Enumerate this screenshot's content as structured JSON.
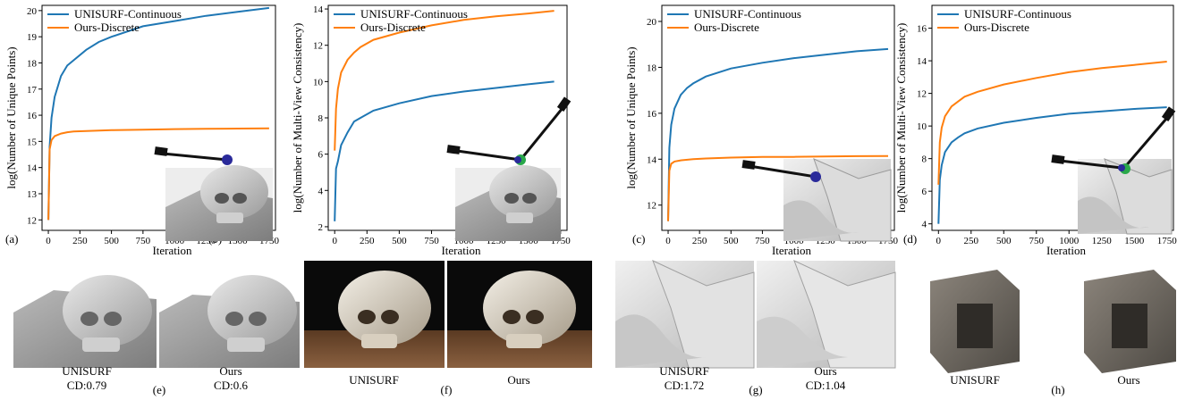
{
  "chart_data": [
    {
      "type": "line",
      "panel_label": "(a)",
      "xlabel": "Iteration",
      "ylabel": "log(Number of Unique Points)",
      "xlim": [
        -50,
        1800
      ],
      "ylim": [
        11.6,
        20.2
      ],
      "xticks": [
        0,
        250,
        500,
        750,
        1000,
        1250,
        1500,
        1750
      ],
      "yticks": [
        12,
        13,
        14,
        15,
        16,
        17,
        18,
        19,
        20
      ],
      "legend_position": "top-left",
      "series": [
        {
          "name": "UNISURF-Continuous",
          "color": "#1f77b4",
          "x": [
            0,
            10,
            25,
            50,
            100,
            150,
            200,
            300,
            400,
            500,
            750,
            1000,
            1250,
            1500,
            1750
          ],
          "y": [
            12.0,
            14.8,
            15.9,
            16.7,
            17.5,
            17.9,
            18.1,
            18.5,
            18.8,
            19.0,
            19.4,
            19.6,
            19.8,
            19.95,
            20.1
          ]
        },
        {
          "name": "Ours-Discrete",
          "color": "#ff7f0e",
          "x": [
            0,
            10,
            25,
            50,
            100,
            150,
            200,
            300,
            500,
            750,
            1000,
            1250,
            1500,
            1750
          ],
          "y": [
            12.0,
            14.7,
            15.05,
            15.2,
            15.3,
            15.35,
            15.38,
            15.4,
            15.43,
            15.45,
            15.47,
            15.48,
            15.49,
            15.5
          ]
        }
      ]
    },
    {
      "type": "line",
      "panel_label": "(b)",
      "xlabel": "Iteration",
      "ylabel": "log(Number of Multi-View Consistency)",
      "xlim": [
        -50,
        1800
      ],
      "ylim": [
        1.8,
        14.2
      ],
      "xticks": [
        0,
        250,
        500,
        750,
        1000,
        1250,
        1500,
        1750
      ],
      "yticks": [
        2,
        4,
        6,
        8,
        10,
        12,
        14
      ],
      "legend_position": "top-left",
      "series": [
        {
          "name": "UNISURF-Continuous",
          "color": "#1f77b4",
          "x": [
            0,
            10,
            25,
            50,
            100,
            150,
            200,
            300,
            500,
            750,
            1000,
            1250,
            1500,
            1700
          ],
          "y": [
            2.3,
            5.2,
            5.6,
            6.5,
            7.2,
            7.8,
            8.0,
            8.4,
            8.8,
            9.2,
            9.45,
            9.65,
            9.85,
            10.0
          ]
        },
        {
          "name": "Ours-Discrete",
          "color": "#ff7f0e",
          "x": [
            0,
            10,
            25,
            50,
            100,
            150,
            200,
            300,
            500,
            750,
            1000,
            1250,
            1500,
            1700
          ],
          "y": [
            6.2,
            8.5,
            9.6,
            10.5,
            11.2,
            11.6,
            11.9,
            12.3,
            12.7,
            13.1,
            13.4,
            13.6,
            13.75,
            13.9
          ]
        }
      ]
    },
    {
      "type": "line",
      "panel_label": "(c)",
      "xlabel": "Iteration",
      "ylabel": "log(Number of Unique Points)",
      "xlim": [
        -50,
        1800
      ],
      "ylim": [
        10.9,
        20.7
      ],
      "xticks": [
        0,
        250,
        500,
        750,
        1000,
        1250,
        1500,
        1750
      ],
      "yticks": [
        12,
        14,
        16,
        18,
        20
      ],
      "legend_position": "top-left",
      "series": [
        {
          "name": "UNISURF-Continuous",
          "color": "#1f77b4",
          "x": [
            0,
            10,
            25,
            50,
            100,
            150,
            200,
            300,
            500,
            750,
            1000,
            1250,
            1500,
            1750
          ],
          "y": [
            11.3,
            14.5,
            15.5,
            16.2,
            16.8,
            17.1,
            17.3,
            17.6,
            17.95,
            18.2,
            18.4,
            18.55,
            18.7,
            18.8
          ]
        },
        {
          "name": "Ours-Discrete",
          "color": "#ff7f0e",
          "x": [
            0,
            10,
            25,
            50,
            100,
            200,
            300,
            500,
            750,
            1000,
            1250,
            1500,
            1750
          ],
          "y": [
            11.3,
            13.5,
            13.8,
            13.9,
            13.95,
            14.0,
            14.03,
            14.07,
            14.1,
            14.1,
            14.12,
            14.13,
            14.14
          ]
        }
      ]
    },
    {
      "type": "line",
      "panel_label": "(d)",
      "xlabel": "Iteration",
      "ylabel": "log(Number of Multi-View Consistency)",
      "xlim": [
        -50,
        1800
      ],
      "ylim": [
        3.6,
        17.4
      ],
      "xticks": [
        0,
        250,
        500,
        750,
        1000,
        1250,
        1500,
        1750
      ],
      "yticks": [
        4,
        6,
        8,
        10,
        12,
        14,
        16
      ],
      "legend_position": "top-left",
      "series": [
        {
          "name": "UNISURF-Continuous",
          "color": "#1f77b4",
          "x": [
            0,
            10,
            25,
            50,
            100,
            150,
            200,
            300,
            500,
            750,
            1000,
            1250,
            1500,
            1750
          ],
          "y": [
            4.0,
            6.7,
            7.6,
            8.4,
            9.0,
            9.3,
            9.55,
            9.85,
            10.2,
            10.5,
            10.75,
            10.9,
            11.05,
            11.15
          ]
        },
        {
          "name": "Ours-Discrete",
          "color": "#ff7f0e",
          "x": [
            0,
            10,
            25,
            50,
            100,
            150,
            200,
            300,
            500,
            750,
            1000,
            1250,
            1500,
            1750
          ],
          "y": [
            6.4,
            9.0,
            9.9,
            10.6,
            11.2,
            11.5,
            11.8,
            12.1,
            12.55,
            12.95,
            13.3,
            13.55,
            13.75,
            13.95
          ]
        }
      ]
    }
  ],
  "captions": {
    "e": {
      "label": "(e)",
      "left_name": "UNISURF",
      "left_cd": "CD:0.79",
      "right_name": "Ours",
      "right_cd": "CD:0.6"
    },
    "f": {
      "label": "(f)",
      "left_name": "UNISURF",
      "right_name": "Ours"
    },
    "g": {
      "label": "(g)",
      "left_name": "UNISURF",
      "left_cd": "CD:1.72",
      "right_name": "Ours",
      "right_cd": "CD:1.04"
    },
    "h": {
      "label": "(h)",
      "left_name": "UNISURF",
      "right_name": "Ours"
    }
  },
  "colors": {
    "unisurf": "#1f77b4",
    "ours": "#ff7f0e",
    "camera_point": "#2a2a9a",
    "camera_point_b": "#2aa84a"
  }
}
